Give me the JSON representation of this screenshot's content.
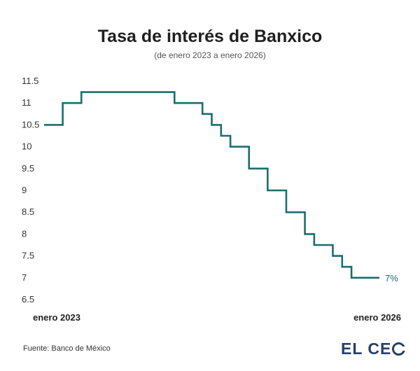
{
  "header": {
    "title": "Tasa de interés de Banxico",
    "subtitle": "(de enero 2023 a enero 2026)"
  },
  "footer": {
    "source": "Fuente: Banco de México",
    "logo_text": "EL CEO"
  },
  "colors": {
    "line": "#1a6e6e",
    "label": "#1a6e6e",
    "logo": "#27406b"
  },
  "chart_data": {
    "type": "line",
    "step": true,
    "title": "Tasa de interés de Banxico",
    "subtitle": "(de enero 2023 a enero 2026)",
    "x_tick_labels": [
      "enero 2023",
      "enero 2026"
    ],
    "y_ticks": [
      "11.5",
      "11",
      "10.5",
      "10",
      "9.5",
      "9",
      "8.5",
      "8",
      "7.5",
      "7",
      "6.5"
    ],
    "ylim": [
      6.5,
      11.5
    ],
    "grid": false,
    "series": [
      {
        "values": [
          10.5,
          10.5,
          11,
          11,
          11.25,
          11.25,
          11.25,
          11.25,
          11.25,
          11.25,
          11.25,
          11.25,
          11.25,
          11.25,
          11,
          11,
          11,
          10.75,
          10.5,
          10.25,
          10,
          10,
          9.5,
          9.5,
          9,
          9,
          8.5,
          8.5,
          8,
          7.75,
          7.75,
          7.5,
          7.25,
          7,
          7,
          7
        ]
      }
    ],
    "end_label": "7%"
  }
}
